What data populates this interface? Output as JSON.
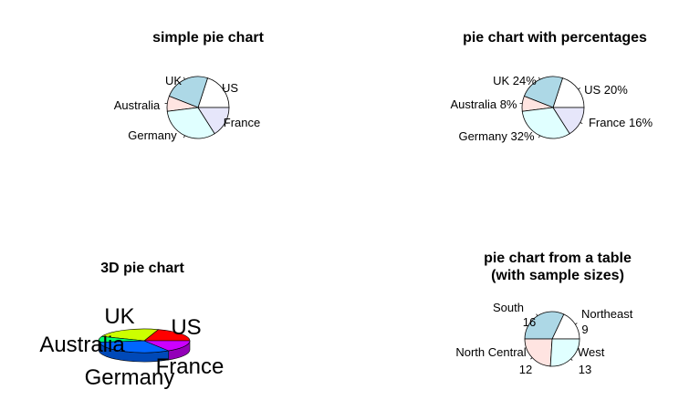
{
  "chart_data": [
    {
      "type": "pie",
      "title": "simple pie chart",
      "slices": [
        {
          "label": "US",
          "value": 10,
          "color": "#ffffff"
        },
        {
          "label": "UK",
          "value": 12,
          "color": "#add8e6"
        },
        {
          "label": "Australia",
          "value": 4,
          "color": "#ffe4e1"
        },
        {
          "label": "Germany",
          "value": 16,
          "color": "#e0ffff"
        },
        {
          "label": "France",
          "value": 8,
          "color": "#e6e6fa"
        }
      ]
    },
    {
      "type": "pie",
      "title": "pie chart with percentages",
      "slices": [
        {
          "label": "US 20%",
          "value": 20,
          "color": "#ffffff"
        },
        {
          "label": "UK 24%",
          "value": 24,
          "color": "#add8e6"
        },
        {
          "label": "Australia 8%",
          "value": 8,
          "color": "#ffe4e1"
        },
        {
          "label": "Germany 32%",
          "value": 32,
          "color": "#e0ffff"
        },
        {
          "label": "France 16%",
          "value": 16,
          "color": "#e6e6fa"
        }
      ]
    },
    {
      "type": "pie",
      "title": "3D pie chart",
      "slices": [
        {
          "label": "US",
          "value": 10,
          "color": "#ff0000"
        },
        {
          "label": "UK",
          "value": 12,
          "color": "#ccff00"
        },
        {
          "label": "Australia",
          "value": 4,
          "color": "#00ff66"
        },
        {
          "label": "Germany",
          "value": 16,
          "color": "#0066ff"
        },
        {
          "label": "France",
          "value": 8,
          "color": "#cc00ff"
        }
      ]
    },
    {
      "type": "pie",
      "title_lines": [
        "pie chart from a table",
        "(with sample sizes)"
      ],
      "slices": [
        {
          "label": "Northeast",
          "label_line2": "9",
          "value": 9,
          "color": "#ffffff"
        },
        {
          "label": "South",
          "label_line2": "16",
          "value": 16,
          "color": "#add8e6"
        },
        {
          "label": "North Central",
          "label_line2": "12",
          "value": 12,
          "color": "#ffe4e1"
        },
        {
          "label": "West",
          "label_line2": "13",
          "value": 13,
          "color": "#e0ffff"
        }
      ]
    }
  ]
}
